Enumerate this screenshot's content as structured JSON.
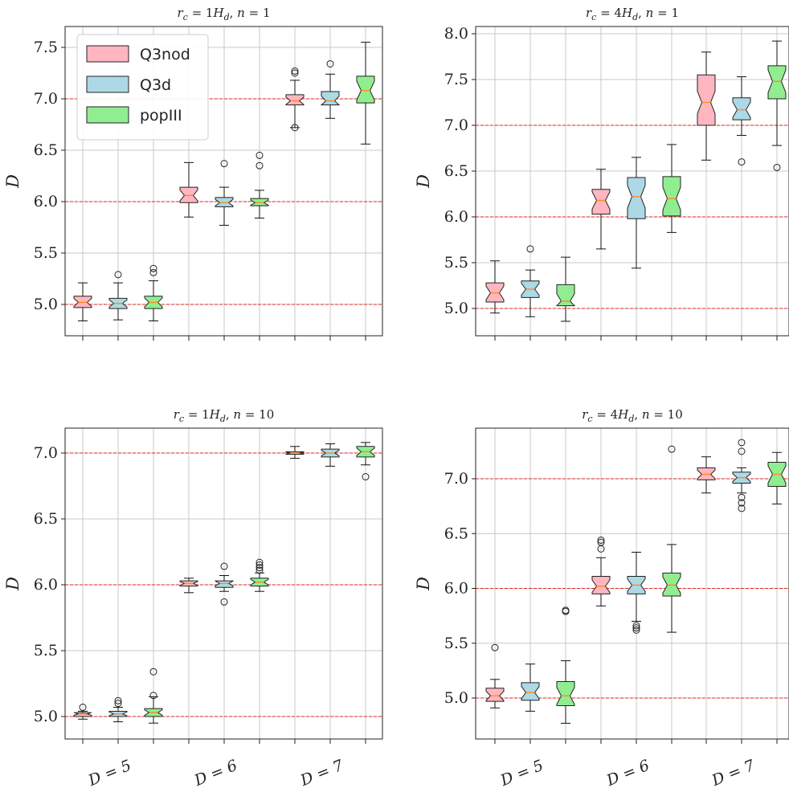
{
  "chart_data": [
    {
      "type": "boxplot",
      "title": "r_c = 1H_d, n = 1",
      "ylabel": "D",
      "ylim": [
        4.8,
        7.7
      ],
      "yticks": [
        "5.0",
        "5.5",
        "6.0",
        "6.5",
        "7.0",
        "7.5"
      ],
      "reference_lines": [
        5.0,
        6.0,
        7.0
      ],
      "categories": [
        "D = 5",
        "D = 6",
        "D = 7"
      ],
      "show_category_labels": false,
      "series": [
        {
          "name": "Q3nod",
          "color": "#ffb6c1",
          "boxes": [
            {
              "whislo": 4.84,
              "q1": 4.97,
              "med": 5.02,
              "q3": 5.08,
              "whishi": 5.21,
              "fliers": []
            },
            {
              "whislo": 5.85,
              "q1": 5.99,
              "med": 6.06,
              "q3": 6.14,
              "whishi": 6.38,
              "fliers": []
            },
            {
              "whislo": 6.72,
              "q1": 6.94,
              "med": 6.98,
              "q3": 7.04,
              "whishi": 7.18,
              "fliers": [
                6.72,
                7.25,
                7.27
              ]
            }
          ]
        },
        {
          "name": "Q3d",
          "color": "#add8e6",
          "boxes": [
            {
              "whislo": 4.85,
              "q1": 4.96,
              "med": 5.01,
              "q3": 5.06,
              "whishi": 5.21,
              "fliers": [
                5.29
              ]
            },
            {
              "whislo": 5.77,
              "q1": 5.95,
              "med": 5.99,
              "q3": 6.04,
              "whishi": 6.14,
              "fliers": [
                6.37
              ]
            },
            {
              "whislo": 6.81,
              "q1": 6.94,
              "med": 6.98,
              "q3": 7.07,
              "whishi": 7.24,
              "fliers": [
                7.34
              ]
            }
          ]
        },
        {
          "name": "popIII",
          "color": "#90ee90",
          "boxes": [
            {
              "whislo": 4.84,
              "q1": 4.96,
              "med": 5.02,
              "q3": 5.08,
              "whishi": 5.23,
              "fliers": [
                5.31,
                5.35
              ]
            },
            {
              "whislo": 5.84,
              "q1": 5.96,
              "med": 5.99,
              "q3": 6.03,
              "whishi": 6.11,
              "fliers": [
                6.35,
                6.45
              ]
            },
            {
              "whislo": 6.56,
              "q1": 6.96,
              "med": 7.08,
              "q3": 7.22,
              "whishi": 7.55,
              "fliers": []
            }
          ]
        }
      ],
      "legend": {
        "placement": "upper-left",
        "entries": [
          "Q3nod",
          "Q3d",
          "popIII"
        ]
      }
    },
    {
      "type": "boxplot",
      "title": "r_c = 4H_d, n = 1",
      "ylabel": "D",
      "ylim": [
        4.85,
        8.06
      ],
      "yticks": [
        "5.0",
        "5.5",
        "6.0",
        "6.5",
        "7.0",
        "7.5",
        "8.0"
      ],
      "reference_lines": [
        5.0,
        6.0,
        7.0
      ],
      "categories": [
        "D = 5",
        "D = 6",
        "D = 7"
      ],
      "show_category_labels": false,
      "series": [
        {
          "name": "Q3nod",
          "color": "#ffb6c1",
          "boxes": [
            {
              "whislo": 4.95,
              "q1": 5.07,
              "med": 5.17,
              "q3": 5.28,
              "whishi": 5.52,
              "fliers": []
            },
            {
              "whislo": 5.65,
              "q1": 6.03,
              "med": 6.18,
              "q3": 6.3,
              "whishi": 6.52,
              "fliers": []
            },
            {
              "whislo": 6.62,
              "q1": 7.0,
              "med": 7.25,
              "q3": 7.55,
              "whishi": 7.8,
              "fliers": []
            }
          ]
        },
        {
          "name": "Q3d",
          "color": "#add8e6",
          "boxes": [
            {
              "whislo": 4.91,
              "q1": 5.12,
              "med": 5.21,
              "q3": 5.3,
              "whishi": 5.42,
              "fliers": [
                5.65
              ]
            },
            {
              "whislo": 5.44,
              "q1": 5.98,
              "med": 6.22,
              "q3": 6.43,
              "whishi": 6.65,
              "fliers": []
            },
            {
              "whislo": 6.89,
              "q1": 7.06,
              "med": 7.17,
              "q3": 7.3,
              "whishi": 7.53,
              "fliers": [
                6.6
              ]
            }
          ]
        },
        {
          "name": "popIII",
          "color": "#90ee90",
          "boxes": [
            {
              "whislo": 4.86,
              "q1": 5.03,
              "med": 5.08,
              "q3": 5.26,
              "whishi": 5.56,
              "fliers": []
            },
            {
              "whislo": 5.83,
              "q1": 6.01,
              "med": 6.2,
              "q3": 6.44,
              "whishi": 6.79,
              "fliers": []
            },
            {
              "whislo": 6.78,
              "q1": 7.29,
              "med": 7.48,
              "q3": 7.65,
              "whishi": 7.92,
              "fliers": [
                6.54
              ]
            }
          ]
        }
      ]
    },
    {
      "type": "boxplot",
      "title": "r_c = 1H_d, n = 10",
      "ylabel": "D",
      "ylim": [
        4.93,
        7.11
      ],
      "yticks": [
        "5.0",
        "5.5",
        "6.0",
        "6.5",
        "7.0"
      ],
      "reference_lines": [
        5.0,
        6.0,
        7.0
      ],
      "categories": [
        "D = 5",
        "D = 6",
        "D = 7"
      ],
      "show_category_labels": true,
      "series": [
        {
          "name": "Q3nod",
          "color": "#ffb6c1",
          "boxes": [
            {
              "whislo": 4.98,
              "q1": 5.0,
              "med": 5.02,
              "q3": 5.03,
              "whishi": 5.04,
              "fliers": [
                5.07
              ]
            },
            {
              "whislo": 5.94,
              "q1": 5.99,
              "med": 6.01,
              "q3": 6.03,
              "whishi": 6.05,
              "fliers": []
            },
            {
              "whislo": 6.96,
              "q1": 6.99,
              "med": 7.0,
              "q3": 7.01,
              "whishi": 7.05,
              "fliers": []
            }
          ]
        },
        {
          "name": "Q3d",
          "color": "#add8e6",
          "boxes": [
            {
              "whislo": 4.96,
              "q1": 5.0,
              "med": 5.02,
              "q3": 5.04,
              "whishi": 5.07,
              "fliers": [
                5.1,
                5.12
              ]
            },
            {
              "whislo": 5.95,
              "q1": 5.98,
              "med": 6.01,
              "q3": 6.03,
              "whishi": 6.07,
              "fliers": [
                5.87,
                6.14
              ]
            },
            {
              "whislo": 6.9,
              "q1": 6.97,
              "med": 7.0,
              "q3": 7.03,
              "whishi": 7.07,
              "fliers": []
            }
          ]
        },
        {
          "name": "popIII",
          "color": "#90ee90",
          "boxes": [
            {
              "whislo": 4.95,
              "q1": 5.0,
              "med": 5.03,
              "q3": 5.06,
              "whishi": 5.15,
              "fliers": [
                5.16,
                5.34
              ]
            },
            {
              "whislo": 5.95,
              "q1": 5.99,
              "med": 6.02,
              "q3": 6.05,
              "whishi": 6.09,
              "fliers": [
                6.11,
                6.13,
                6.15,
                6.17
              ]
            },
            {
              "whislo": 6.91,
              "q1": 6.97,
              "med": 7.01,
              "q3": 7.05,
              "whishi": 7.08,
              "fliers": [
                6.82
              ]
            }
          ]
        }
      ]
    },
    {
      "type": "boxplot",
      "title": "r_c = 4H_d, n = 10",
      "ylabel": "D",
      "ylim": [
        4.8,
        7.5
      ],
      "yticks": [
        "5.0",
        "5.5",
        "6.0",
        "6.5",
        "7.0"
      ],
      "reference_lines": [
        5.0,
        6.0,
        7.0
      ],
      "categories": [
        "D = 5",
        "D = 6",
        "D = 7"
      ],
      "show_category_labels": true,
      "series": [
        {
          "name": "Q3nod",
          "color": "#ffb6c1",
          "boxes": [
            {
              "whislo": 4.91,
              "q1": 4.97,
              "med": 5.02,
              "q3": 5.09,
              "whishi": 5.17,
              "fliers": [
                5.46
              ]
            },
            {
              "whislo": 5.84,
              "q1": 5.95,
              "med": 6.02,
              "q3": 6.11,
              "whishi": 6.28,
              "fliers": [
                6.36,
                6.42,
                6.44
              ]
            },
            {
              "whislo": 6.87,
              "q1": 6.99,
              "med": 7.04,
              "q3": 7.1,
              "whishi": 7.2,
              "fliers": []
            }
          ]
        },
        {
          "name": "Q3d",
          "color": "#add8e6",
          "boxes": [
            {
              "whislo": 4.88,
              "q1": 4.98,
              "med": 5.05,
              "q3": 5.14,
              "whishi": 5.31,
              "fliers": []
            },
            {
              "whislo": 5.7,
              "q1": 5.95,
              "med": 6.03,
              "q3": 6.11,
              "whishi": 6.33,
              "fliers": [
                5.62,
                5.64,
                5.66
              ]
            },
            {
              "whislo": 6.87,
              "q1": 6.96,
              "med": 7.01,
              "q3": 7.06,
              "whishi": 7.1,
              "fliers": [
                6.73,
                6.78,
                6.83,
                7.25,
                7.33
              ]
            }
          ]
        },
        {
          "name": "popIII",
          "color": "#90ee90",
          "boxes": [
            {
              "whislo": 4.77,
              "q1": 4.93,
              "med": 5.02,
              "q3": 5.15,
              "whishi": 5.34,
              "fliers": [
                5.79,
                5.8
              ]
            },
            {
              "whislo": 5.6,
              "q1": 5.93,
              "med": 6.03,
              "q3": 6.14,
              "whishi": 6.4,
              "fliers": [
                7.27
              ]
            },
            {
              "whislo": 6.77,
              "q1": 6.93,
              "med": 7.04,
              "q3": 7.15,
              "whishi": 7.24,
              "fliers": []
            }
          ]
        }
      ]
    }
  ]
}
